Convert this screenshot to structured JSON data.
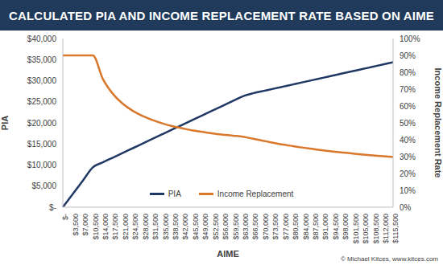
{
  "chart_data": {
    "type": "line",
    "title": "CALCULATED PIA AND INCOME REPLACEMENT RATE BASED ON AIME",
    "x_label": "AIME",
    "y_label": "PIA",
    "y2_label": "Income Replacement Rate",
    "annotations": [
      "© Michael Kitces, www.kitces.com"
    ],
    "categories": [
      "$-",
      "$3,500",
      "$7,000",
      "$10,500",
      "$14,000",
      "$17,500",
      "$21,000",
      "$24,500",
      "$28,000",
      "$31,500",
      "$35,000",
      "$38,500",
      "$42,000",
      "$45,500",
      "$49,000",
      "$52,500",
      "$56,000",
      "$59,500",
      "$63,000",
      "$66,500",
      "$70,000",
      "$73,500",
      "$77,000",
      "$80,500",
      "$84,000",
      "$87,500",
      "$91,000",
      "$94,500",
      "$98,000",
      "$101,500",
      "$105,000",
      "$108,500",
      "$112,000",
      "$115,500"
    ],
    "series": [
      {
        "name": "PIA",
        "color": "#1f3864",
        "values": [
          0,
          3150,
          6300,
          9450,
          10640,
          11760,
          12880,
          14000,
          15120,
          16240,
          17360,
          18480,
          19600,
          20720,
          21840,
          22960,
          24080,
          25200,
          26320,
          27020,
          27545,
          28070,
          28595,
          29120,
          29645,
          30170,
          30695,
          31220,
          31745,
          32270,
          32795,
          33320,
          33845,
          34370
        ]
      },
      {
        "name": "Income Replacement",
        "color": "#d9772b",
        "axis": "y2",
        "values": [
          90,
          90,
          90,
          90,
          76,
          67.2,
          61.3,
          57.1,
          54,
          51.6,
          49.6,
          48,
          46.7,
          45.5,
          44.6,
          43.7,
          43,
          42.4,
          41.8,
          40.6,
          39.4,
          38.2,
          37.1,
          36.2,
          35.3,
          34.5,
          33.7,
          33,
          32.4,
          31.8,
          31.2,
          30.7,
          30.2,
          29.8
        ]
      }
    ],
    "ylim": [
      0,
      40000
    ],
    "yticks": [
      {
        "value": 0,
        "label": "$-"
      },
      {
        "value": 5000,
        "label": "$5,000"
      },
      {
        "value": 10000,
        "label": "$10,000"
      },
      {
        "value": 15000,
        "label": "$15,000"
      },
      {
        "value": 20000,
        "label": "$20,000"
      },
      {
        "value": 25000,
        "label": "$25,000"
      },
      {
        "value": 30000,
        "label": "$30,000"
      },
      {
        "value": 35000,
        "label": "$35,000"
      },
      {
        "value": 40000,
        "label": "$40,000"
      }
    ],
    "y2lim": [
      0,
      100
    ],
    "y2ticks": [
      {
        "value": 0,
        "label": "0%"
      },
      {
        "value": 10,
        "label": "10%"
      },
      {
        "value": 20,
        "label": "20%"
      },
      {
        "value": 30,
        "label": "30%"
      },
      {
        "value": 40,
        "label": "40%"
      },
      {
        "value": 50,
        "label": "50%"
      },
      {
        "value": 60,
        "label": "60%"
      },
      {
        "value": 70,
        "label": "70%"
      },
      {
        "value": 80,
        "label": "80%"
      },
      {
        "value": 90,
        "label": "90%"
      },
      {
        "value": 100,
        "label": "100%"
      }
    ],
    "grid": false,
    "legend": "lower center"
  }
}
